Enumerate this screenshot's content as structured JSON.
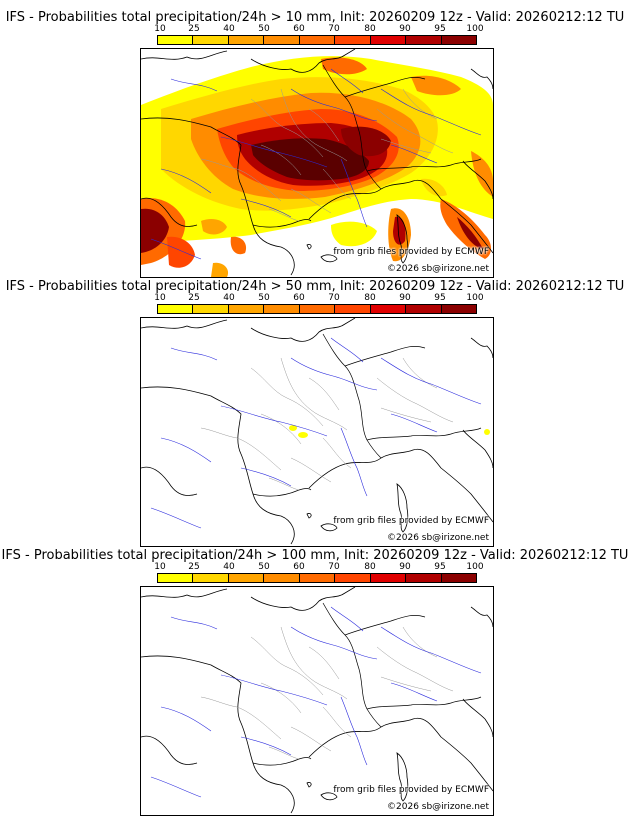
{
  "colors": {
    "scale": [
      "#ffff00",
      "#ffd700",
      "#ffa500",
      "#ff8c00",
      "#ff6a00",
      "#ff4500",
      "#e00000",
      "#b00000",
      "#8b0000",
      "#5a0000"
    ]
  },
  "panels": [
    {
      "title": "IFS - Probabilities total precipitation/24h > 10 mm, Init: 20260209 12z - Valid: 20260212:12 TU",
      "scale_labels": [
        "10",
        "25",
        "40",
        "50",
        "60",
        "70",
        "80",
        "90",
        "95",
        "100"
      ],
      "credit_line1": "from grib files provided by ECMWF",
      "credit_line2": "©2026 sb@irizone.net"
    },
    {
      "title": "IFS - Probabilities total precipitation/24h > 50 mm, Init: 20260209 12z - Valid: 20260212:12 TU",
      "scale_labels": [
        "10",
        "25",
        "40",
        "50",
        "60",
        "70",
        "80",
        "90",
        "95",
        "100"
      ],
      "credit_line1": "from grib files provided by ECMWF",
      "credit_line2": "©2026 sb@irizone.net"
    },
    {
      "title": "IFS - Probabilities total precipitation/24h > 100 mm, Init: 20260209 12z - Valid: 20260212:12 TU",
      "scale_labels": [
        "10",
        "25",
        "40",
        "50",
        "60",
        "70",
        "80",
        "90",
        "95",
        "100"
      ],
      "credit_line1": "from grib files provided by ECMWF",
      "credit_line2": "©2026 sb@irizone.net"
    }
  ]
}
